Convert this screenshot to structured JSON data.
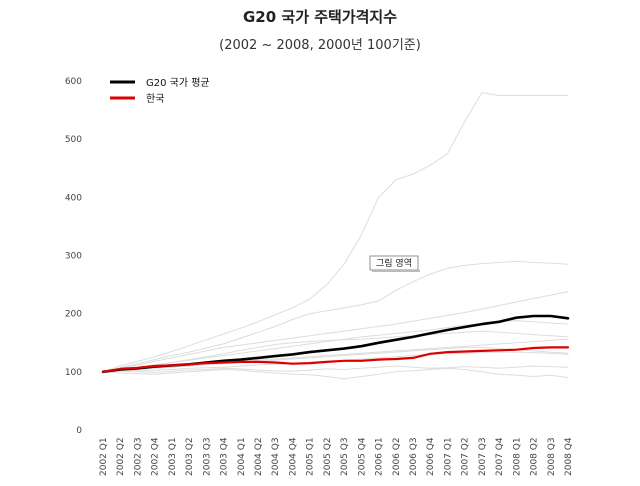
{
  "chart_data": {
    "type": "line",
    "title": "G20 국가 주택가격지수",
    "subtitle": "(2002 ~ 2008, 2000년 100기준)",
    "xlabel": "",
    "ylabel": "",
    "ylim": [
      0,
      600
    ],
    "yticks": [
      0,
      100,
      200,
      300,
      400,
      500,
      600
    ],
    "grid": false,
    "legend_position": "top-left",
    "tooltip_label": "그림 영역",
    "categories": [
      "2002 Q1",
      "2002 Q2",
      "2002 Q3",
      "2002 Q4",
      "2003 Q1",
      "2003 Q2",
      "2003 Q3",
      "2003 Q4",
      "2004 Q1",
      "2004 Q2",
      "2004 Q3",
      "2004 Q4",
      "2005 Q1",
      "2005 Q2",
      "2005 Q3",
      "2005 Q4",
      "2006 Q1",
      "2006 Q2",
      "2006 Q3",
      "2006 Q4",
      "2007 Q1",
      "2007 Q2",
      "2007 Q3",
      "2007 Q4",
      "2008 Q1",
      "2008 Q2",
      "2008 Q3",
      "2008 Q4"
    ],
    "series": [
      {
        "name": "G20 국가 평균",
        "color": "#000000",
        "width": 2.6,
        "legend": true,
        "values": [
          100,
          104,
          106,
          109,
          111,
          113,
          116,
          119,
          121,
          124,
          127,
          130,
          134,
          137,
          140,
          144,
          150,
          155,
          160,
          166,
          172,
          177,
          182,
          186,
          193,
          196,
          196,
          192
        ]
      },
      {
        "name": "한국",
        "color": "#dd0000",
        "width": 2.2,
        "legend": true,
        "values": [
          100,
          105,
          107,
          110,
          111,
          113,
          115,
          116,
          117,
          117,
          116,
          114,
          115,
          117,
          119,
          119,
          121,
          122,
          124,
          131,
          134,
          135,
          136,
          137,
          138,
          141,
          142,
          142
        ]
      },
      {
        "name": "",
        "color": "#dddddd",
        "width": 1,
        "legend": false,
        "values": [
          100,
          110,
          118,
          126,
          135,
          145,
          155,
          165,
          175,
          186,
          198,
          210,
          225,
          250,
          285,
          335,
          400,
          430,
          440,
          455,
          475,
          530,
          580,
          575,
          575,
          575,
          575,
          575
        ]
      },
      {
        "name": "",
        "color": "#dddddd",
        "width": 1,
        "legend": false,
        "values": [
          100,
          107,
          114,
          121,
          128,
          134,
          141,
          148,
          158,
          168,
          178,
          190,
          200,
          205,
          210,
          215,
          222,
          240,
          255,
          268,
          278,
          283,
          286,
          288,
          290,
          288,
          287,
          285
        ]
      },
      {
        "name": "",
        "color": "#dddddd",
        "width": 1,
        "legend": false,
        "values": [
          100,
          106,
          112,
          118,
          124,
          130,
          136,
          142,
          146,
          150,
          154,
          158,
          162,
          166,
          170,
          174,
          178,
          182,
          187,
          192,
          197,
          202,
          208,
          214,
          220,
          226,
          232,
          238
        ]
      },
      {
        "name": "",
        "color": "#dddddd",
        "width": 1,
        "legend": false,
        "values": [
          100,
          104,
          108,
          112,
          116,
          120,
          124,
          128,
          132,
          136,
          140,
          144,
          148,
          152,
          156,
          160,
          163,
          166,
          169,
          172,
          176,
          180,
          183,
          186,
          188,
          186,
          184,
          182
        ]
      },
      {
        "name": "",
        "color": "#dddddd",
        "width": 1,
        "legend": false,
        "values": [
          100,
          103,
          106,
          108,
          110,
          112,
          114,
          116,
          118,
          120,
          122,
          124,
          126,
          128,
          130,
          132,
          134,
          136,
          138,
          140,
          142,
          144,
          146,
          148,
          150,
          152,
          154,
          156
        ]
      },
      {
        "name": "",
        "color": "#dddddd",
        "width": 1,
        "legend": false,
        "values": [
          100,
          102,
          104,
          106,
          108,
          110,
          112,
          114,
          116,
          118,
          120,
          122,
          124,
          126,
          128,
          130,
          132,
          134,
          136,
          138,
          140,
          142,
          142,
          140,
          138,
          136,
          134,
          132
        ]
      },
      {
        "name": "",
        "color": "#dddddd",
        "width": 1,
        "legend": false,
        "values": [
          100,
          101,
          102,
          103,
          104,
          106,
          107,
          108,
          110,
          112,
          113,
          114,
          116,
          118,
          120,
          122,
          124,
          126,
          128,
          130,
          131,
          132,
          133,
          134,
          134,
          133,
          132,
          130
        ]
      },
      {
        "name": "",
        "color": "#dddddd",
        "width": 1,
        "legend": false,
        "values": [
          100,
          98,
          97,
          96,
          98,
          100,
          102,
          104,
          103,
          100,
          98,
          96,
          95,
          92,
          88,
          92,
          96,
          100,
          102,
          104,
          106,
          104,
          100,
          96,
          94,
          92,
          94,
          90
        ]
      },
      {
        "name": "",
        "color": "#dddddd",
        "width": 1,
        "legend": false,
        "values": [
          100,
          102,
          100,
          99,
          101,
          103,
          104,
          106,
          105,
          103,
          102,
          101,
          103,
          105,
          104,
          106,
          108,
          110,
          108,
          106,
          107,
          109,
          108,
          106,
          108,
          110,
          109,
          108
        ]
      },
      {
        "name": "",
        "color": "#dddddd",
        "width": 1,
        "legend": false,
        "values": [
          100,
          104,
          108,
          112,
          116,
          121,
          126,
          131,
          137,
          142,
          147,
          150,
          152,
          154,
          155,
          156,
          158,
          160,
          162,
          164,
          166,
          168,
          170,
          168,
          166,
          164,
          162,
          160
        ]
      }
    ]
  }
}
